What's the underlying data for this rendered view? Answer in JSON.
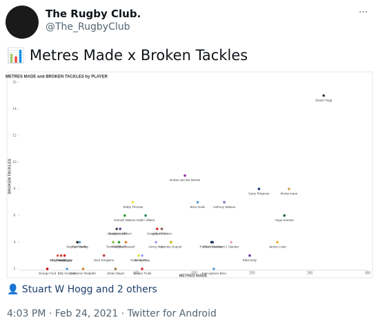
{
  "tweet": {
    "name": "The Rugby Club.",
    "handle": "@The_RugbyClub",
    "more": "···",
    "text": "📊 Metres Made x Broken Tackles",
    "likes": "Stuart W Hogg and 2 others",
    "timestamp": "4:03 PM · Feb 24, 2021 · Twitter for Android"
  },
  "chart_data": {
    "type": "scatter",
    "title": "METRES MADE and BROKEN TACKLES by PLAYER",
    "xlabel": "METRES MADE",
    "ylabel": "BROKEN TACKLES",
    "xlim": [
      0,
      300
    ],
    "ylim": [
      2,
      16
    ],
    "xticks": [
      100,
      150,
      200,
      250,
      300
    ],
    "yticks": [
      2,
      4,
      6,
      8,
      10,
      12,
      14,
      16
    ],
    "x": [
      262,
      142,
      206,
      232,
      97,
      153,
      176,
      90,
      108,
      228,
      83,
      86,
      118,
      122,
      49,
      51,
      80,
      85,
      91,
      117,
      130,
      165,
      166,
      182,
      222,
      32,
      35,
      38,
      72,
      105,
      102,
      198,
      23,
      40,
      54,
      82,
      105,
      167
    ],
    "values": [
      15,
      9,
      8,
      8,
      7,
      7,
      7,
      6,
      6,
      6,
      5,
      5,
      5,
      5,
      4,
      4,
      4,
      4,
      4,
      4,
      4,
      4,
      4,
      4,
      4,
      3,
      3,
      3,
      3,
      3,
      3,
      3,
      2,
      2,
      2,
      2,
      2,
      2
    ],
    "point_labels": [
      "Stuart Hogg",
      "Duhan van der Merwe",
      "Garry Ringrose",
      "Monty Ioane",
      "Teddy Thomas",
      "Brice Dulin",
      "Anthony Watson",
      "Hamish Watson",
      "Gabin Villiere",
      "Hugo Keenan",
      "George North",
      "Matthieu Jalibert",
      "Gregory Alldritt",
      "Arthur Vincent",
      "Stephen Varney",
      "Cyril Baille",
      "Tom Curry",
      "Keith Earls",
      "Finn Russell",
      "Jonny May",
      "Antoine Dupont",
      "Robbie Henshaw",
      "Paolo Garbisi",
      "CJ Stander",
      "James Lowe",
      "Ellis Genge",
      "Leigh Halfpenny",
      "Dan Biggar",
      "Nick Tompkins",
      "Jonny Gray",
      "Chris Harris",
      "Elliot Daly",
      "George Ford",
      "Billy Vunipola",
      "Cameron Redpath",
      "Johan Meyer",
      "Jacopo Trulla",
      "Juan Ignacio Brex"
    ],
    "colors": [
      "#333333",
      "#8e2e9e",
      "#1f3a7a",
      "#c8a050",
      "#f2e23a",
      "#5b9bd5",
      "#8e6ccf",
      "#2ca02c",
      "#2e8b57",
      "#1e6b3a",
      "#444444",
      "#6a3d9a",
      "#d62728",
      "#8c564b",
      "#222222",
      "#5b9bd5",
      "#7fbf3f",
      "#2ca02c",
      "#e08030",
      "#a0a0ff",
      "#c8b400",
      "#222222",
      "#1f3a7a",
      "#f4a0b0",
      "#f0b020",
      "#e06060",
      "#c05030",
      "#d62728",
      "#c04040",
      "#a0a0ff",
      "#e0e040",
      "#6a3d9a",
      "#cc0000",
      "#5b9bd5",
      "#d08030",
      "#a07040",
      "#d62728",
      "#5b9bd5"
    ]
  }
}
